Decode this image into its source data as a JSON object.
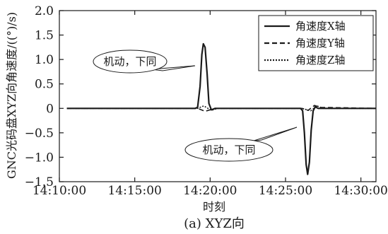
{
  "chart_data": {
    "type": "line",
    "title": "",
    "caption": "(a) XYZ向",
    "xlabel": "时刻",
    "ylabel": "GNC光码盘XYZ向角速度/((°)/s)",
    "xlim": [
      "14:10:00",
      "14:31:00"
    ],
    "ylim": [
      -1.5,
      2.0
    ],
    "x_ticks": [
      "14:10:00",
      "14:15:00",
      "14:20:00",
      "14:25:00",
      "14:30:00"
    ],
    "y_ticks": [
      2.0,
      1.5,
      1.0,
      0.5,
      0,
      -0.5,
      -1.0,
      -1.5
    ],
    "y_tick_labels": [
      "2.0",
      "1.5",
      "1.0",
      "0.5",
      "0",
      "−0.5",
      "−1.0",
      "−1.5"
    ],
    "grid": false,
    "legend_position": "top-right",
    "series": [
      {
        "name": "角速度X轴",
        "style": "solid",
        "color": "#1a1a1a",
        "x": [
          "14:10:30",
          "14:19:00",
          "14:19:10",
          "14:19:20",
          "14:19:27",
          "14:19:33",
          "14:19:40",
          "14:19:48",
          "14:19:55",
          "14:20:05",
          "14:20:20",
          "14:26:00",
          "14:26:08",
          "14:26:15",
          "14:26:22",
          "14:26:28",
          "14:26:35",
          "14:26:42",
          "14:26:50",
          "14:26:58",
          "14:27:10",
          "14:31:00"
        ],
        "values": [
          0.0,
          0.0,
          0.02,
          0.45,
          1.1,
          1.32,
          1.25,
          0.7,
          0.1,
          -0.03,
          0.0,
          0.0,
          -0.05,
          -0.5,
          -1.15,
          -1.35,
          -1.1,
          -0.45,
          -0.05,
          0.03,
          0.0,
          0.0
        ]
      },
      {
        "name": "角速度Y轴",
        "style": "dash",
        "color": "#1a1a1a",
        "x": [
          "14:10:30",
          "14:19:10",
          "14:19:40",
          "14:20:00",
          "14:20:20",
          "14:26:05",
          "14:26:30",
          "14:26:55",
          "14:27:20",
          "14:31:00"
        ],
        "values": [
          0.0,
          0.0,
          -0.06,
          -0.03,
          0.0,
          0.0,
          -0.04,
          0.06,
          0.02,
          0.0
        ]
      },
      {
        "name": "角速度Z轴",
        "style": "dot",
        "color": "#1a1a1a",
        "x": [
          "14:10:30",
          "14:19:10",
          "14:19:35",
          "14:20:05",
          "14:20:30",
          "14:26:05",
          "14:26:40",
          "14:27:05",
          "14:27:30",
          "14:31:00"
        ],
        "values": [
          0.0,
          0.0,
          0.05,
          -0.04,
          0.0,
          0.0,
          -0.05,
          0.05,
          0.0,
          0.0
        ]
      }
    ],
    "annotations": [
      {
        "text": "机动，下同",
        "x": "14:19:30",
        "y": 1.25
      },
      {
        "text": "机动，下同",
        "x": "14:26:20",
        "y": -1.0
      }
    ]
  }
}
